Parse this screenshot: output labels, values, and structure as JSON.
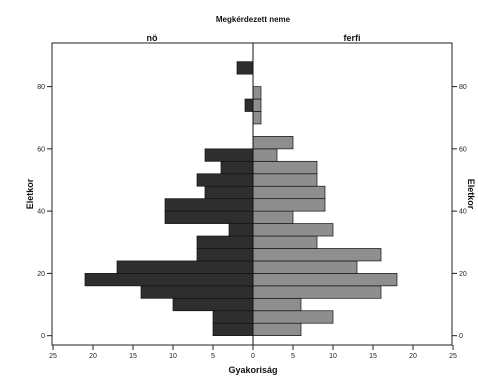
{
  "chart_data": {
    "type": "bar",
    "orientation": "horizontal",
    "subtype": "population-pyramid",
    "title": "Megkérdezett neme",
    "panels": [
      "nö",
      "ferfi"
    ],
    "xlabel": "Gyakoriság",
    "ylabel": "Eletkor",
    "ylabel_right": "Eletkor",
    "xlim": [
      -25,
      25
    ],
    "x_ticks": [
      25,
      20,
      15,
      10,
      5,
      0,
      5,
      10,
      15,
      20,
      25
    ],
    "ylim": [
      -3,
      94
    ],
    "y_ticks": [
      0,
      20,
      40,
      60,
      80
    ],
    "bin_width": 4,
    "age_bins": [
      0,
      4,
      8,
      12,
      16,
      20,
      24,
      28,
      32,
      36,
      40,
      44,
      48,
      52,
      56,
      60,
      64,
      68,
      72,
      76,
      80,
      84,
      88
    ],
    "series": [
      {
        "name": "nö",
        "color": "#2e2e2e",
        "values": [
          5,
          5,
          10,
          14,
          21,
          17,
          7,
          7,
          3,
          11,
          11,
          6,
          7,
          4,
          6,
          0,
          0,
          0,
          1,
          0,
          0,
          2,
          0
        ]
      },
      {
        "name": "ferfi",
        "color": "#8e8e8e",
        "values": [
          6,
          10,
          6,
          16,
          18,
          13,
          16,
          8,
          10,
          5,
          9,
          9,
          8,
          8,
          3,
          5,
          0,
          1,
          1,
          1,
          0,
          0,
          0
        ]
      }
    ],
    "grid": false,
    "legend": "none"
  }
}
